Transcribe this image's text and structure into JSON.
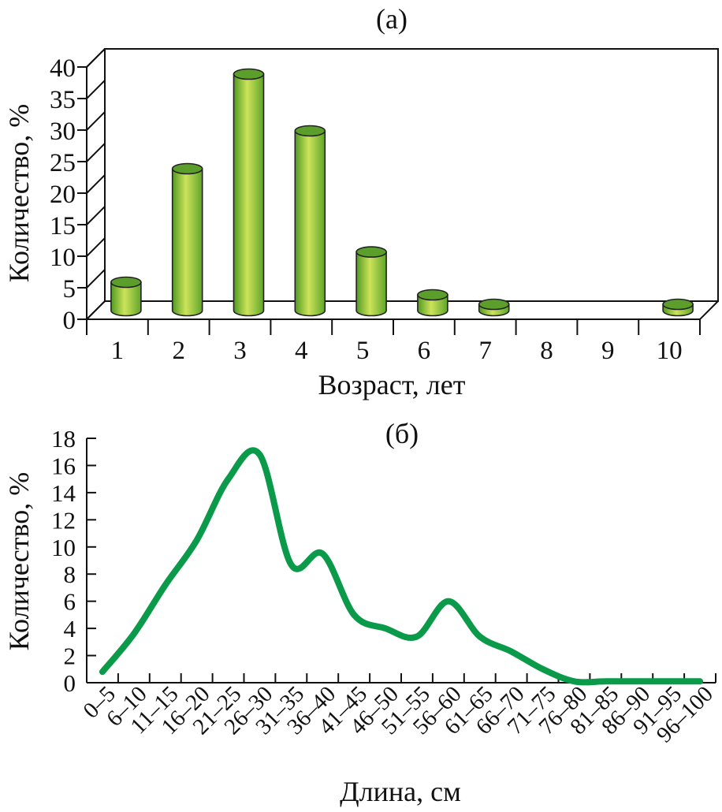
{
  "chart_data": [
    {
      "type": "bar",
      "panel_label": "(а)",
      "xlabel": "Возраст, лет",
      "ylabel": "Количество, %",
      "categories": [
        "1",
        "2",
        "3",
        "4",
        "5",
        "6",
        "7",
        "8",
        "9",
        "10"
      ],
      "values": [
        4.5,
        22.5,
        37.5,
        28.5,
        9.3,
        2.5,
        1.0,
        0,
        0,
        1.0
      ],
      "ylim": [
        0,
        40
      ],
      "yticks": [
        "0",
        "5",
        "10",
        "15",
        "20",
        "25",
        "30",
        "35",
        "40"
      ],
      "style": "3d-cylinder",
      "colors": {
        "bar_light": "#cde35a",
        "bar_mid": "#8cc63f",
        "bar_dark": "#4f9a22",
        "top": "#5b9e2c"
      },
      "grid": false
    },
    {
      "type": "line",
      "panel_label": "(б)",
      "xlabel": "Длина, см",
      "ylabel": "Количество, %",
      "categories": [
        "0–5",
        "6–10",
        "11–15",
        "16–20",
        "21–25",
        "26–30",
        "31–35",
        "36–40",
        "41–45",
        "46–50",
        "51–55",
        "56–60",
        "61–65",
        "66–70",
        "71–75",
        "76–80",
        "81–85",
        "86–90",
        "91–95",
        "96–100"
      ],
      "values": [
        0.8,
        3.6,
        7.2,
        10.5,
        15.0,
        16.8,
        8.7,
        9.5,
        5.0,
        4.0,
        3.4,
        6.0,
        3.4,
        2.3,
        1.0,
        0.1,
        0.1,
        0.1,
        0.1,
        0.1
      ],
      "ylim": [
        0,
        18
      ],
      "yticks": [
        "0",
        "2",
        "4",
        "6",
        "8",
        "10",
        "12",
        "14",
        "16",
        "18"
      ],
      "colors": {
        "line": "#0a9a4a"
      },
      "grid": false
    }
  ]
}
